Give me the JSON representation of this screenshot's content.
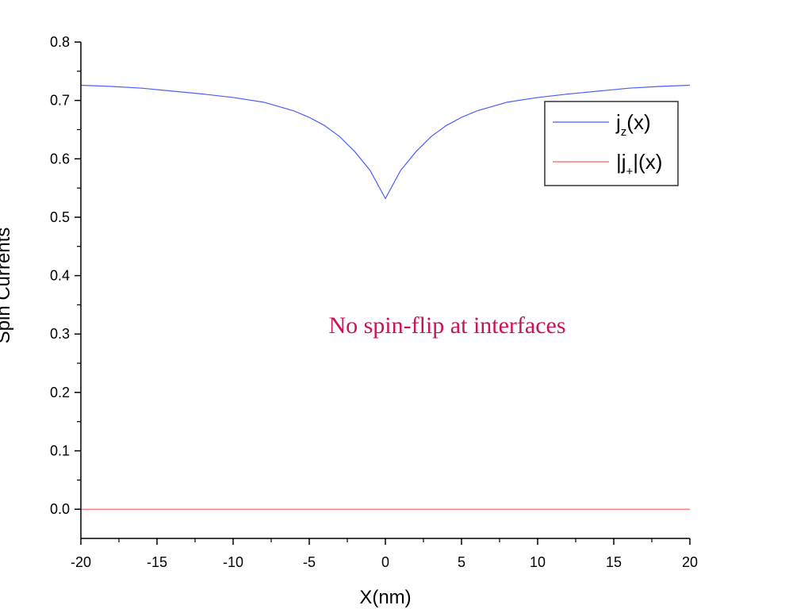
{
  "chart_data": {
    "type": "line",
    "title": "",
    "xlabel": "X(nm)",
    "ylabel": "Spin Currents",
    "xlim": [
      -20,
      20
    ],
    "ylim": [
      -0.05,
      0.8
    ],
    "x_ticks": [
      -20,
      -15,
      -10,
      -5,
      0,
      5,
      10,
      15,
      20
    ],
    "y_ticks": [
      0.0,
      0.1,
      0.2,
      0.3,
      0.4,
      0.5,
      0.6,
      0.7,
      0.8
    ],
    "y_tick_labels": [
      "0.0",
      "0.1",
      "0.2",
      "0.3",
      "0.4",
      "0.5",
      "0.6",
      "0.7",
      "0.8"
    ],
    "grid": false,
    "legend_position": "top-right",
    "series": [
      {
        "name": "j_z(x)",
        "color": "#4a5cff",
        "x": [
          -20,
          -18,
          -16,
          -14,
          -12,
          -10,
          -8,
          -6,
          -5,
          -4,
          -3,
          -2,
          -1,
          0,
          1,
          2,
          3,
          4,
          5,
          6,
          8,
          10,
          12,
          14,
          16,
          18,
          20
        ],
        "y": [
          0.726,
          0.724,
          0.721,
          0.716,
          0.711,
          0.705,
          0.697,
          0.682,
          0.671,
          0.657,
          0.638,
          0.612,
          0.58,
          0.532,
          0.58,
          0.612,
          0.638,
          0.657,
          0.671,
          0.682,
          0.697,
          0.705,
          0.711,
          0.716,
          0.721,
          0.724,
          0.726
        ]
      },
      {
        "name": "|j_+|(x)",
        "color": "#ff5a5a",
        "x": [
          -20,
          20
        ],
        "y": [
          0.0,
          0.0
        ]
      }
    ],
    "legend": [
      {
        "base": "j",
        "sub": "z",
        "suffix": "(x)",
        "color": "#4a5cff"
      },
      {
        "base": "|j",
        "sub": "+",
        "suffix": "|(x)",
        "color": "#ff5a5a"
      }
    ],
    "annotation": {
      "text": "No spin-flip at interfaces",
      "color": "#cc1155"
    }
  }
}
